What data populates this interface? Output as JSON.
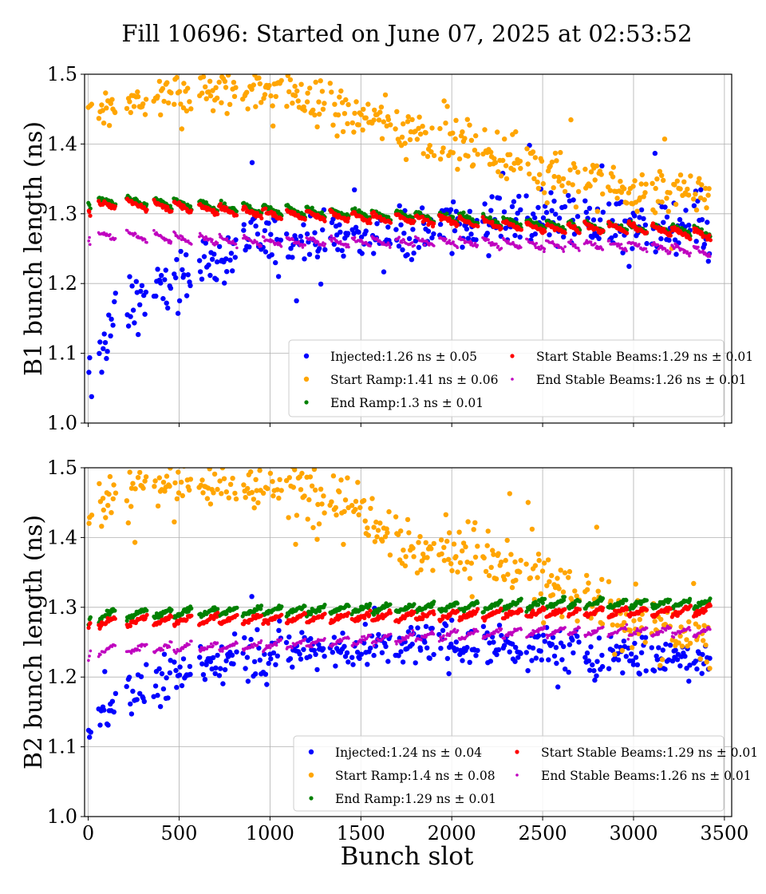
{
  "chart_data": {
    "type": "scatter",
    "title": "Fill 10696: Started on June 07, 2025 at 02:53:52",
    "xlabel": "Bunch slot",
    "xlim": [
      -20,
      3540
    ],
    "x_ticks": [
      "0",
      "500",
      "1000",
      "1500",
      "2000",
      "2500",
      "3000",
      "3500"
    ],
    "grid": true,
    "trains": [
      {
        "start": 0,
        "end": 14
      },
      {
        "start": 56,
        "end": 150
      },
      {
        "start": 210,
        "end": 320
      },
      {
        "start": 360,
        "end": 455
      },
      {
        "start": 470,
        "end": 565
      },
      {
        "start": 610,
        "end": 710
      },
      {
        "start": 720,
        "end": 815
      },
      {
        "start": 850,
        "end": 950
      },
      {
        "start": 960,
        "end": 1060
      },
      {
        "start": 1090,
        "end": 1190
      },
      {
        "start": 1200,
        "end": 1300
      },
      {
        "start": 1330,
        "end": 1430
      },
      {
        "start": 1450,
        "end": 1550
      },
      {
        "start": 1560,
        "end": 1660
      },
      {
        "start": 1690,
        "end": 1790
      },
      {
        "start": 1800,
        "end": 1900
      },
      {
        "start": 1930,
        "end": 2030
      },
      {
        "start": 2040,
        "end": 2140
      },
      {
        "start": 2170,
        "end": 2270
      },
      {
        "start": 2280,
        "end": 2380
      },
      {
        "start": 2410,
        "end": 2510
      },
      {
        "start": 2520,
        "end": 2620
      },
      {
        "start": 2640,
        "end": 2700
      },
      {
        "start": 2730,
        "end": 2830
      },
      {
        "start": 2860,
        "end": 2960
      },
      {
        "start": 2970,
        "end": 3070
      },
      {
        "start": 3100,
        "end": 3200
      },
      {
        "start": 3210,
        "end": 3310
      },
      {
        "start": 3330,
        "end": 3420
      }
    ],
    "panels": [
      {
        "ylabel": "B1 bunch length (ns)",
        "ylim": [
          1.0,
          1.5
        ],
        "y_ticks": [
          "1.0",
          "1.1",
          "1.2",
          "1.3",
          "1.4",
          "1.5"
        ],
        "show_xticklabels": false,
        "legend_position": "lower-right",
        "series": [
          {
            "name": "Injected:1.26 ns ± 0.05",
            "color": "#0000ff",
            "size": 3.2,
            "mean": 1.26,
            "spread": 0.05,
            "profile": [
              [
                0,
                1.05
              ],
              [
                150,
                1.16
              ],
              [
                300,
                1.18
              ],
              [
                500,
                1.21
              ],
              [
                700,
                1.23
              ],
              [
                900,
                1.26
              ],
              [
                1500,
                1.27
              ],
              [
                2000,
                1.28
              ],
              [
                2500,
                1.3
              ],
              [
                3000,
                1.28
              ],
              [
                3420,
                1.27
              ]
            ]
          },
          {
            "name": "Start Ramp:1.41 ns ± 0.06",
            "color": "#ffa500",
            "size": 3.2,
            "mean": 1.41,
            "spread": 0.06,
            "profile": [
              [
                0,
                1.44
              ],
              [
                500,
                1.47
              ],
              [
                1000,
                1.48
              ],
              [
                1500,
                1.44
              ],
              [
                1900,
                1.41
              ],
              [
                2200,
                1.39
              ],
              [
                2500,
                1.37
              ],
              [
                2700,
                1.35
              ],
              [
                3000,
                1.33
              ],
              [
                3420,
                1.33
              ]
            ]
          },
          {
            "name": "End Ramp:1.3 ns ± 0.01",
            "color": "#008000",
            "size": 2.6,
            "mean": 1.3,
            "spread": 0.01,
            "profile": [
              [
                0,
                1.31
              ],
              [
                100,
                1.32
              ],
              [
                500,
                1.315
              ],
              [
                1000,
                1.305
              ],
              [
                1500,
                1.3
              ],
              [
                2000,
                1.295
              ],
              [
                2500,
                1.285
              ],
              [
                3000,
                1.28
              ],
              [
                3420,
                1.275
              ]
            ]
          },
          {
            "name": "Start Stable Beams:1.29 ns ± 0.01",
            "color": "#ff0000",
            "size": 2.6,
            "mean": 1.29,
            "spread": 0.01,
            "profile": [
              [
                0,
                1.3
              ],
              [
                100,
                1.315
              ],
              [
                500,
                1.31
              ],
              [
                1000,
                1.3
              ],
              [
                1500,
                1.295
              ],
              [
                2000,
                1.29
              ],
              [
                2500,
                1.28
              ],
              [
                3000,
                1.28
              ],
              [
                3420,
                1.27
              ]
            ]
          },
          {
            "name": "End Stable Beams:1.26 ns ± 0.01",
            "color": "#bf00bf",
            "size": 1.8,
            "mean": 1.26,
            "spread": 0.01,
            "profile": [
              [
                0,
                1.26
              ],
              [
                100,
                1.27
              ],
              [
                500,
                1.265
              ],
              [
                1000,
                1.26
              ],
              [
                1500,
                1.26
              ],
              [
                2000,
                1.26
              ],
              [
                2500,
                1.255
              ],
              [
                3000,
                1.255
              ],
              [
                3420,
                1.245
              ]
            ]
          }
        ]
      },
      {
        "ylabel": "B2 bunch length (ns)",
        "ylim": [
          1.0,
          1.5
        ],
        "y_ticks": [
          "1.0",
          "1.1",
          "1.2",
          "1.3",
          "1.4",
          "1.5"
        ],
        "show_xticklabels": true,
        "legend_position": "lower-right",
        "series": [
          {
            "name": "Injected:1.24 ns ± 0.04",
            "color": "#0000ff",
            "size": 3.2,
            "mean": 1.24,
            "spread": 0.04,
            "profile": [
              [
                0,
                1.12
              ],
              [
                150,
                1.17
              ],
              [
                300,
                1.18
              ],
              [
                500,
                1.2
              ],
              [
                700,
                1.22
              ],
              [
                1000,
                1.24
              ],
              [
                1500,
                1.24
              ],
              [
                2000,
                1.25
              ],
              [
                2500,
                1.24
              ],
              [
                3000,
                1.23
              ],
              [
                3420,
                1.23
              ]
            ]
          },
          {
            "name": "Start Ramp:1.4 ns ± 0.08",
            "color": "#ffa500",
            "size": 3.2,
            "mean": 1.4,
            "spread": 0.08,
            "profile": [
              [
                0,
                1.44
              ],
              [
                300,
                1.48
              ],
              [
                800,
                1.48
              ],
              [
                1400,
                1.46
              ],
              [
                1600,
                1.43
              ],
              [
                1800,
                1.38
              ],
              [
                2100,
                1.38
              ],
              [
                2400,
                1.35
              ],
              [
                2700,
                1.31
              ],
              [
                3000,
                1.28
              ],
              [
                3420,
                1.25
              ]
            ]
          },
          {
            "name": "End Ramp:1.29 ns ± 0.01",
            "color": "#008000",
            "size": 2.6,
            "mean": 1.29,
            "spread": 0.01,
            "profile": [
              [
                0,
                1.28
              ],
              [
                100,
                1.29
              ],
              [
                1000,
                1.295
              ],
              [
                2000,
                1.3
              ],
              [
                2500,
                1.305
              ],
              [
                3000,
                1.305
              ],
              [
                3420,
                1.305
              ]
            ]
          },
          {
            "name": "Start Stable Beams:1.29 ns ± 0.01",
            "color": "#ff0000",
            "size": 2.6,
            "mean": 1.29,
            "spread": 0.01,
            "profile": [
              [
                0,
                1.275
              ],
              [
                100,
                1.28
              ],
              [
                1000,
                1.283
              ],
              [
                2000,
                1.288
              ],
              [
                2500,
                1.292
              ],
              [
                3000,
                1.293
              ],
              [
                3420,
                1.295
              ]
            ]
          },
          {
            "name": "End Stable Beams:1.26 ns ± 0.01",
            "color": "#bf00bf",
            "size": 1.8,
            "mean": 1.26,
            "spread": 0.01,
            "profile": [
              [
                0,
                1.23
              ],
              [
                100,
                1.24
              ],
              [
                1000,
                1.245
              ],
              [
                2000,
                1.26
              ],
              [
                2500,
                1.265
              ],
              [
                3000,
                1.265
              ],
              [
                3420,
                1.265
              ]
            ]
          }
        ]
      }
    ]
  }
}
